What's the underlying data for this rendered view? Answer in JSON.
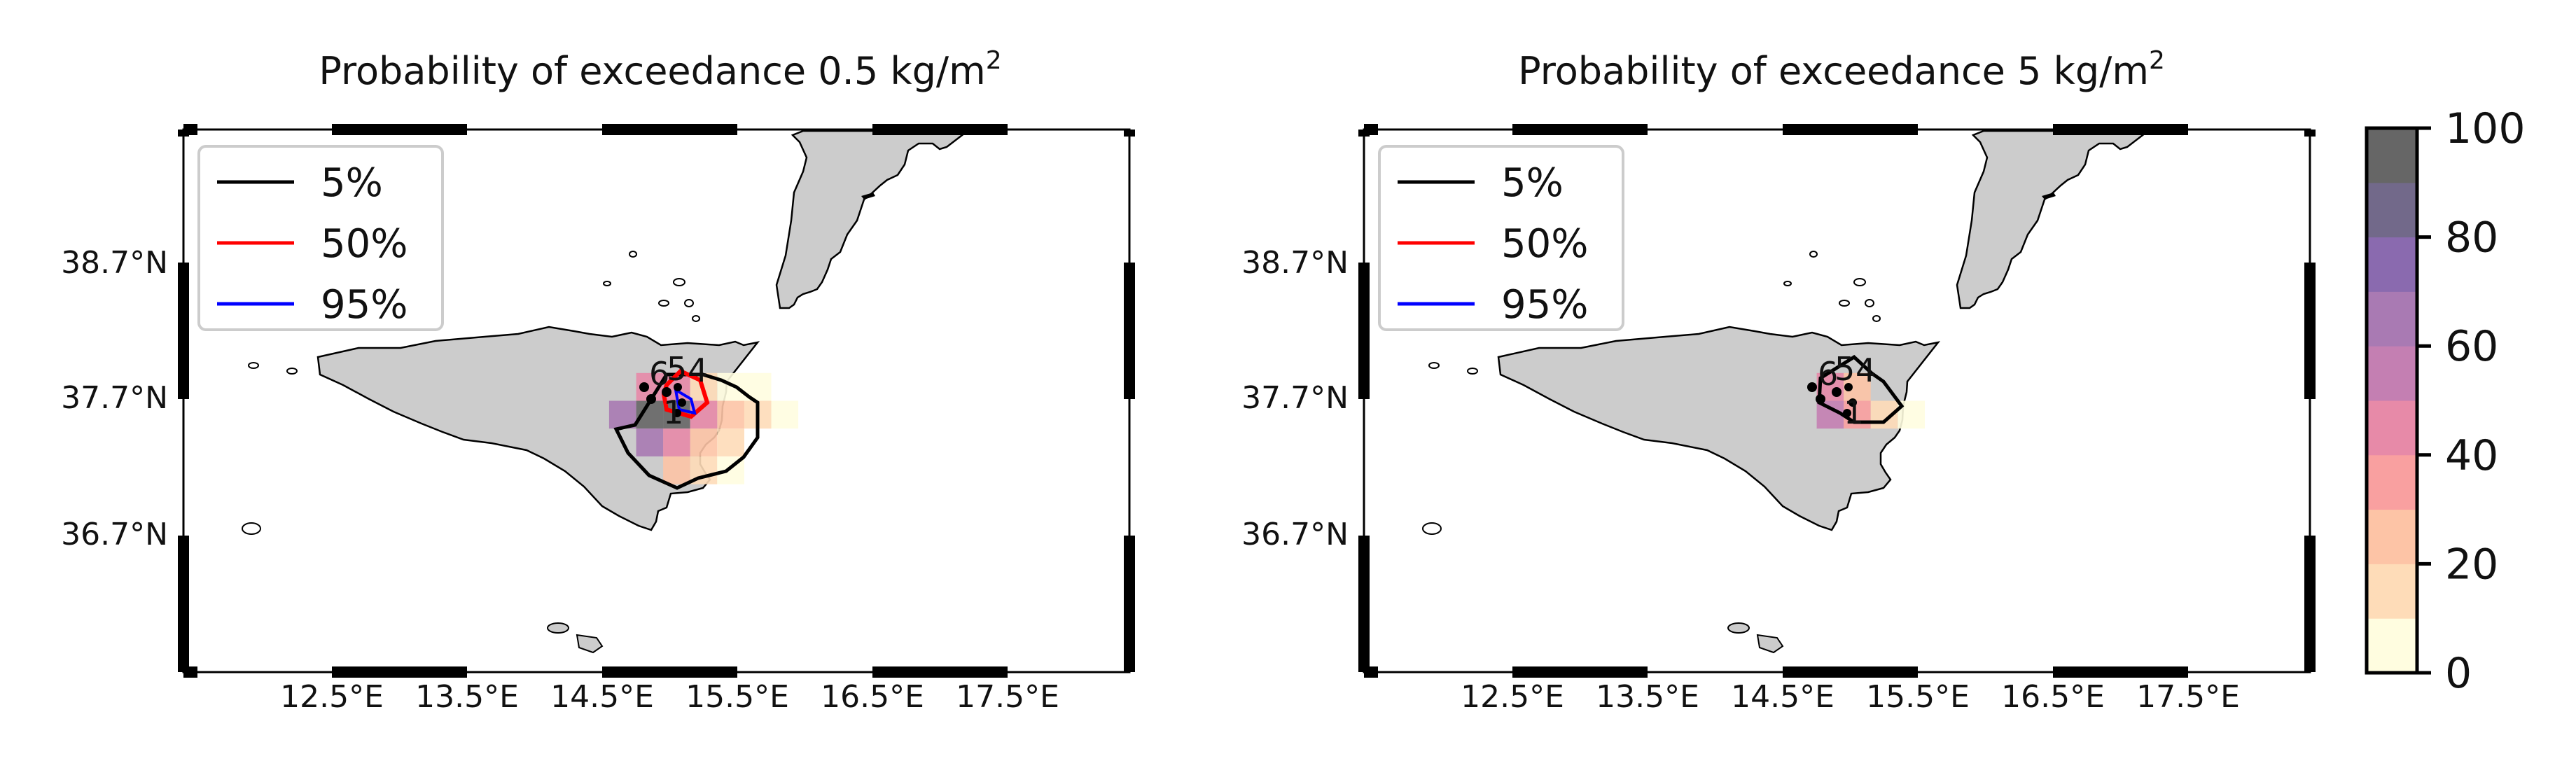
{
  "chart_data": [
    {
      "type": "heatmap",
      "panel": "left",
      "title": "Probability of exceedance 0.5 kg/m",
      "title_superscript": "2",
      "xlabel": "",
      "ylabel": "",
      "x_ticks": [
        "12.5°E",
        "13.5°E",
        "14.5°E",
        "15.5°E",
        "16.5°E",
        "17.5°E"
      ],
      "x_tick_values": [
        12.5,
        13.5,
        14.5,
        15.5,
        16.5,
        17.5
      ],
      "y_ticks": [
        "38.7°N",
        "37.7°N",
        "36.7°N"
      ],
      "y_tick_values": [
        38.7,
        37.7,
        36.7
      ],
      "xlim": [
        11.6,
        18.6
      ],
      "ylim": [
        35.8,
        39.7
      ],
      "grid": false,
      "legend_position": "top-left",
      "legend": [
        {
          "label": "5%",
          "color": "#000000"
        },
        {
          "label": "50%",
          "color": "#ff0000"
        },
        {
          "label": "95%",
          "color": "#0000ff"
        }
      ],
      "vent_labels": [
        "6",
        "5",
        "4",
        "1"
      ],
      "cells": [
        {
          "lon": 15.05,
          "lat": 37.85,
          "p": 45
        },
        {
          "lon": 15.25,
          "lat": 37.85,
          "p": 40
        },
        {
          "lon": 15.45,
          "lat": 37.85,
          "p": 15
        },
        {
          "lon": 15.65,
          "lat": 37.85,
          "p": 5
        },
        {
          "lon": 15.85,
          "lat": 37.85,
          "p": 3
        },
        {
          "lon": 14.85,
          "lat": 37.65,
          "p": 65
        },
        {
          "lon": 15.05,
          "lat": 37.65,
          "p": 100
        },
        {
          "lon": 15.25,
          "lat": 37.65,
          "p": 95
        },
        {
          "lon": 15.45,
          "lat": 37.65,
          "p": 40
        },
        {
          "lon": 15.65,
          "lat": 37.65,
          "p": 22
        },
        {
          "lon": 15.85,
          "lat": 37.65,
          "p": 10
        },
        {
          "lon": 16.05,
          "lat": 37.65,
          "p": 3
        },
        {
          "lon": 15.05,
          "lat": 37.45,
          "p": 60
        },
        {
          "lon": 15.25,
          "lat": 37.45,
          "p": 40
        },
        {
          "lon": 15.45,
          "lat": 37.45,
          "p": 28
        },
        {
          "lon": 15.65,
          "lat": 37.45,
          "p": 12
        },
        {
          "lon": 15.25,
          "lat": 37.25,
          "p": 25
        },
        {
          "lon": 15.45,
          "lat": 37.25,
          "p": 15
        },
        {
          "lon": 15.65,
          "lat": 37.25,
          "p": 8
        }
      ]
    },
    {
      "type": "heatmap",
      "panel": "right",
      "title": "Probability of exceedance 5 kg/m",
      "title_superscript": "2",
      "xlabel": "",
      "ylabel": "",
      "x_ticks": [
        "12.5°E",
        "13.5°E",
        "14.5°E",
        "15.5°E",
        "16.5°E",
        "17.5°E"
      ],
      "x_tick_values": [
        12.5,
        13.5,
        14.5,
        15.5,
        16.5,
        17.5
      ],
      "y_ticks": [
        "38.7°N",
        "37.7°N",
        "36.7°N"
      ],
      "y_tick_values": [
        38.7,
        37.7,
        36.7
      ],
      "xlim": [
        11.6,
        18.6
      ],
      "ylim": [
        35.8,
        39.7
      ],
      "grid": false,
      "legend_position": "top-left",
      "legend": [
        {
          "label": "5%",
          "color": "#000000"
        },
        {
          "label": "50%",
          "color": "#ff0000"
        },
        {
          "label": "95%",
          "color": "#0000ff"
        }
      ],
      "vent_labels": [
        "6",
        "5",
        "4",
        "1"
      ],
      "cells": [
        {
          "lon": 15.05,
          "lat": 37.85,
          "p": 40
        },
        {
          "lon": 15.25,
          "lat": 37.85,
          "p": 25
        },
        {
          "lon": 15.05,
          "lat": 37.65,
          "p": 55
        },
        {
          "lon": 15.25,
          "lat": 37.65,
          "p": 35
        },
        {
          "lon": 15.45,
          "lat": 37.65,
          "p": 18
        },
        {
          "lon": 15.65,
          "lat": 37.65,
          "p": 5
        }
      ]
    }
  ],
  "colorbar": {
    "ticks": [
      "0",
      "20",
      "40",
      "60",
      "80",
      "100"
    ],
    "tick_values": [
      0,
      20,
      40,
      60,
      80,
      100
    ],
    "min": 0,
    "max": 100,
    "bin_colors": [
      "#fffde0",
      "#fedcb8",
      "#fdc4a6",
      "#f9a0a0",
      "#e78aa8",
      "#c47fb2",
      "#a97ab3",
      "#8a6aaf",
      "#72698a",
      "#666666"
    ]
  },
  "colors": {
    "land": "#cccccc",
    "coast": "#000000",
    "frame": "#000000"
  }
}
